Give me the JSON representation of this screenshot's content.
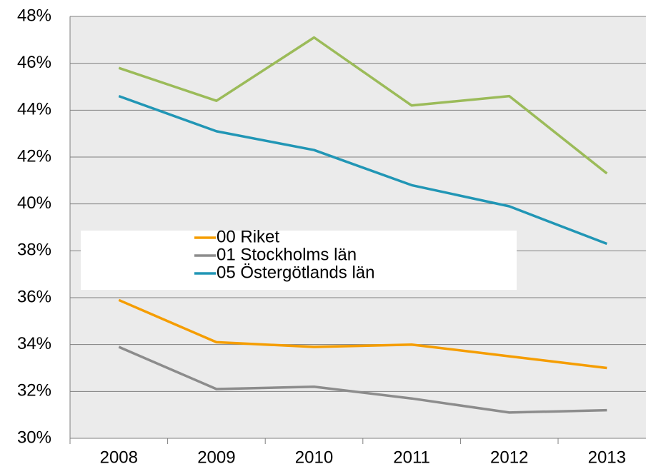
{
  "chart_data": {
    "type": "line",
    "categories": [
      "2008",
      "2009",
      "2010",
      "2011",
      "2012",
      "2013"
    ],
    "series": [
      {
        "name": "00 Riket",
        "color": "#f59d00",
        "values": [
          35.9,
          34.1,
          33.9,
          34.0,
          33.5,
          33.0
        ]
      },
      {
        "name": "01 Stockholms län",
        "color": "#8c8c8c",
        "values": [
          33.9,
          32.1,
          32.2,
          31.7,
          31.1,
          31.2
        ]
      },
      {
        "name": "05 Östergötlands län",
        "color": "#2196b5",
        "values": [
          44.6,
          43.1,
          42.3,
          40.8,
          39.9,
          38.3
        ]
      },
      {
        "color": "#9bbb59",
        "values": [
          45.8,
          44.4,
          47.1,
          44.2,
          44.6,
          41.3
        ]
      }
    ],
    "ylim": [
      30,
      48
    ],
    "yticks": [
      {
        "value": 30,
        "label": "30%"
      },
      {
        "value": 32,
        "label": "32%"
      },
      {
        "value": 34,
        "label": "34%"
      },
      {
        "value": 36,
        "label": "36%"
      },
      {
        "value": 38,
        "label": "38%"
      },
      {
        "value": 40,
        "label": "40%"
      },
      {
        "value": 42,
        "label": "42%"
      },
      {
        "value": 44,
        "label": "44%"
      },
      {
        "value": 46,
        "label": "46%"
      },
      {
        "value": 48,
        "label": "48%"
      }
    ],
    "grid": true
  }
}
